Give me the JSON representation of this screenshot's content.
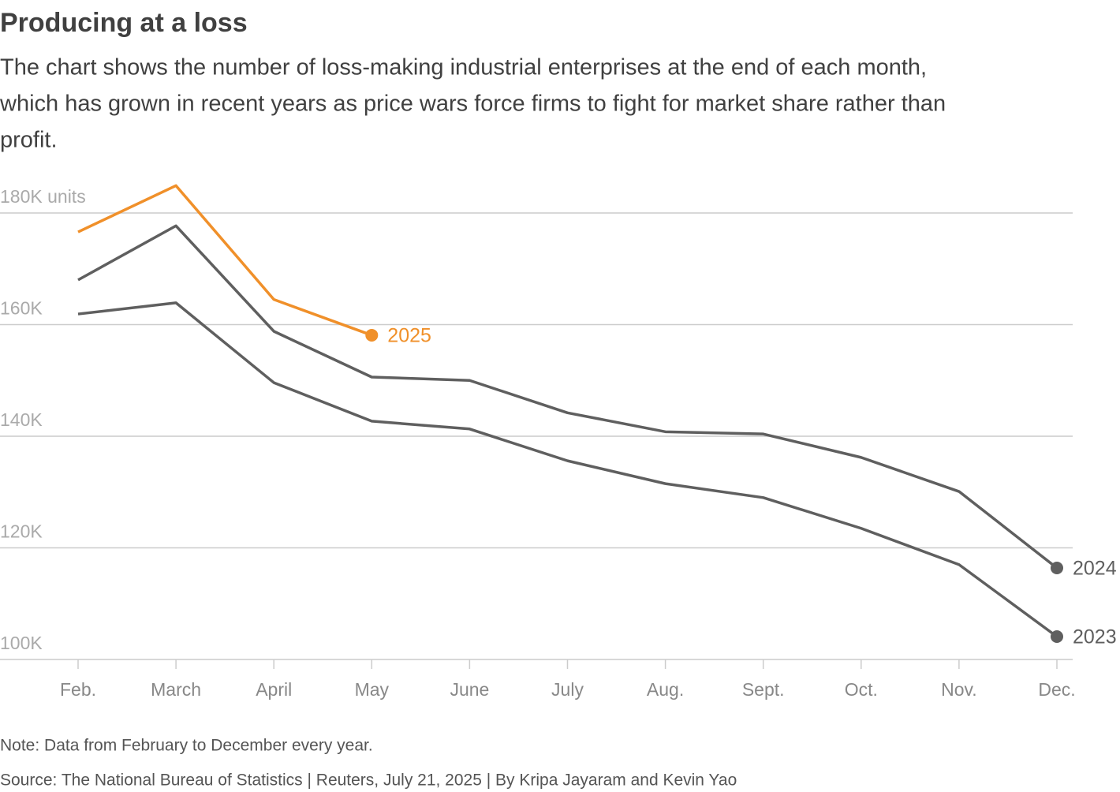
{
  "chart_data": {
    "type": "line",
    "title": "Producing at a loss",
    "subtitle": [
      "The chart shows the number of loss-making industrial enterprises at the end of each month,",
      "which has grown in recent years as price wars force firms to fight for market share rather than",
      "profit."
    ],
    "note": "Note: Data from February to December every year.",
    "source": "Source: The National Bureau of Statistics | Reuters, July 21, 2025 | By Kripa Jayaram and Kevin Yao",
    "categories": [
      "Feb.",
      "March",
      "April",
      "May",
      "June",
      "July",
      "Aug.",
      "Sept.",
      "Oct.",
      "Nov.",
      "Dec."
    ],
    "series": [
      {
        "name": "2023",
        "color": "#5f5f5f",
        "values": [
          161.9,
          163.9,
          149.6,
          142.7,
          141.3,
          135.6,
          131.5,
          129.0,
          123.5,
          117.0,
          104.1
        ]
      },
      {
        "name": "2024",
        "color": "#5f5f5f",
        "values": [
          168.0,
          177.7,
          158.8,
          150.6,
          150.0,
          144.2,
          140.8,
          140.4,
          136.2,
          130.1,
          116.4
        ]
      },
      {
        "name": "2025",
        "color": "#f0902a",
        "values": [
          176.6,
          184.9,
          164.5,
          158.1,
          null,
          null,
          null,
          null,
          null,
          null,
          null
        ]
      }
    ],
    "ylim": [
      100,
      180
    ],
    "yticks": [
      {
        "value": 100,
        "label": "100K"
      },
      {
        "value": 120,
        "label": "120K"
      },
      {
        "value": 140,
        "label": "140K"
      },
      {
        "value": 160,
        "label": "160K"
      },
      {
        "value": 180,
        "label": "180K units"
      }
    ],
    "grid": true
  }
}
